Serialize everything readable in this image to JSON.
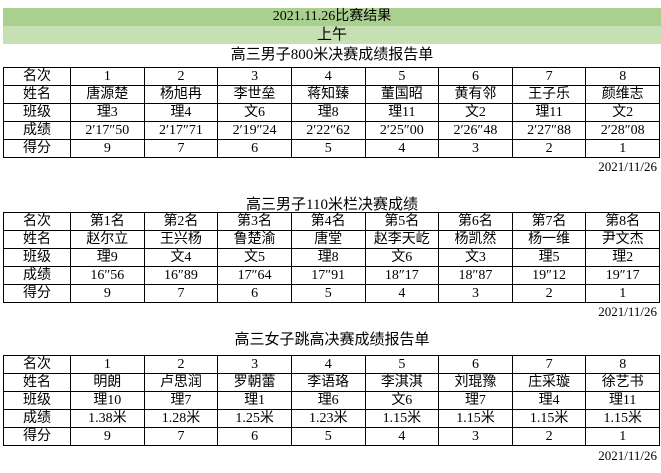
{
  "header": {
    "title": "2021.11.26比赛结果",
    "session": "上午"
  },
  "row_labels": [
    "名次",
    "姓名",
    "班级",
    "成绩",
    "得分"
  ],
  "tables": [
    {
      "title": "高三男子800米决赛成绩报告单",
      "rank": [
        "1",
        "2",
        "3",
        "4",
        "5",
        "6",
        "7",
        "8"
      ],
      "name": [
        "唐源楚",
        "杨旭冉",
        "李世垒",
        "蒋知臻",
        "董国昭",
        "黄有邻",
        "王子乐",
        "颜维志"
      ],
      "class": [
        "理3",
        "理4",
        "文6",
        "理8",
        "理11",
        "文2",
        "理11",
        "文2"
      ],
      "result": [
        "2′17″50",
        "2′17″71",
        "2′19″24",
        "2′22″62",
        "2′25″00",
        "2′26″48",
        "2′27″88",
        "2′28″08"
      ],
      "score": [
        "9",
        "7",
        "6",
        "5",
        "4",
        "3",
        "2",
        "1"
      ],
      "date": "2021/11/26"
    },
    {
      "title": "高三男子110米栏决赛成绩",
      "rank": [
        "第1名",
        "第2名",
        "第3名",
        "第4名",
        "第5名",
        "第6名",
        "第7名",
        "第8名"
      ],
      "name": [
        "赵尔立",
        "王兴杨",
        "鲁楚渝",
        "唐堂",
        "赵李天屹",
        "杨凯然",
        "杨一维",
        "尹文杰"
      ],
      "class": [
        "理9",
        "文4",
        "文5",
        "理8",
        "文6",
        "文3",
        "理5",
        "理2"
      ],
      "result": [
        "16″56",
        "16″89",
        "17″64",
        "17″91",
        "18″17",
        "18″87",
        "19″12",
        "19″17"
      ],
      "score": [
        "9",
        "7",
        "6",
        "5",
        "4",
        "3",
        "2",
        "1"
      ],
      "date": "2021/11/26"
    },
    {
      "title": "高三女子跳高决赛成绩报告单",
      "rank": [
        "1",
        "2",
        "3",
        "4",
        "5",
        "6",
        "7",
        "8"
      ],
      "name": [
        "明朗",
        "卢思润",
        "罗朝蕾",
        "李语珞",
        "李淇淇",
        "刘琨豫",
        "庄采璇",
        "徐艺书"
      ],
      "class": [
        "理10",
        "理7",
        "理1",
        "理6",
        "文6",
        "理7",
        "理4",
        "理11"
      ],
      "result": [
        "1.38米",
        "1.28米",
        "1.25米",
        "1.23米",
        "1.15米",
        "1.15米",
        "1.15米",
        "1.15米"
      ],
      "score": [
        "9",
        "7",
        "6",
        "5",
        "4",
        "3",
        "2",
        "1"
      ],
      "date": "2021/11/26"
    }
  ]
}
